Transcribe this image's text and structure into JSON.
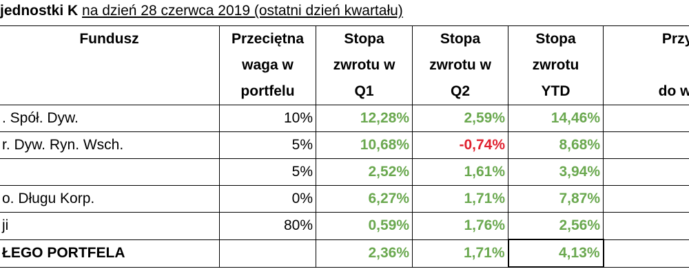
{
  "header": {
    "title_bold": "jednostki K",
    "title_rest": "na dzień 28 czerwca 2019 (ostatni dzień kwartału)"
  },
  "table": {
    "columns": [
      [
        "Fundusz"
      ],
      [
        "Przeciętna",
        "waga w",
        "portfelu"
      ],
      [
        "Stopa",
        "zwrotu w",
        "Q1"
      ],
      [
        "Stopa",
        "zwrotu w",
        "Q2"
      ],
      [
        "Stopa",
        "zwrotu",
        "YTD"
      ],
      [
        "Przybliżo",
        "do wyniku"
      ]
    ],
    "rows": [
      {
        "fund": ". Spół. Dyw.",
        "weight": "10%",
        "q1": "12,28%",
        "q2": "2,59%",
        "ytd": "14,46%"
      },
      {
        "fund": "r. Dyw. Ryn. Wsch.",
        "weight": "5%",
        "q1": "10,68%",
        "q2": "-0,74%",
        "ytd": "8,68%"
      },
      {
        "weight": "5%",
        "q1": "2,52%",
        "q2": "1,61%",
        "ytd": "3,94%"
      },
      {
        "fund": "o. Długu Korp.",
        "weight": "0%",
        "q1": "6,27%",
        "q2": "1,71%",
        "ytd": "7,87%"
      },
      {
        "fund": "ji",
        "weight": "80%",
        "q1": "0,59%",
        "q2": "1,76%",
        "ytd": "2,56%"
      },
      {
        "fund": "ŁEGO PORTFELA",
        "q1": "2,36%",
        "q2": "1,71%",
        "ytd": "4,13%",
        "total": true
      }
    ]
  }
}
